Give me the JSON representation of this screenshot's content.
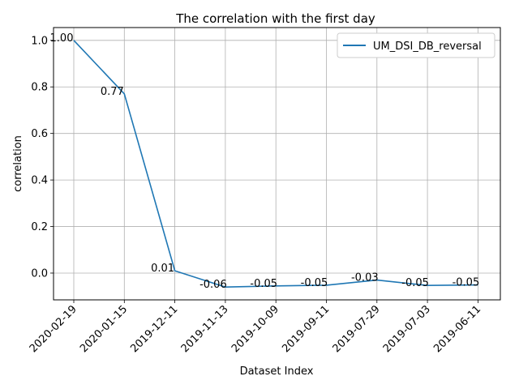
{
  "chart_data": {
    "type": "line",
    "title": "The correlation with the first day",
    "xlabel": "Dataset Index",
    "ylabel": "correlation",
    "categories": [
      "2020-02-19",
      "2020-01-15",
      "2019-12-11",
      "2019-11-13",
      "2019-10-09",
      "2019-09-11",
      "2019-07-29",
      "2019-07-03",
      "2019-06-11"
    ],
    "series": [
      {
        "name": "UM_DSI_DB_reversal",
        "color": "#1f77b4",
        "values": [
          1.0,
          0.77,
          0.01,
          -0.06,
          -0.055,
          -0.052,
          -0.03,
          -0.053,
          -0.051
        ],
        "labels": [
          "1.00",
          "0.77",
          "0.01",
          "-0.06",
          "-0.05",
          "-0.05",
          "-0.03",
          "-0.05",
          "-0.05"
        ]
      }
    ],
    "yticks": [
      "0.0",
      "0.2",
      "0.4",
      "0.6",
      "0.8",
      "1.0"
    ],
    "ytick_values": [
      0.0,
      0.2,
      0.4,
      0.6,
      0.8,
      1.0
    ],
    "ylim": [
      -0.115,
      1.055
    ],
    "grid": true,
    "legend_position": "upper right"
  }
}
